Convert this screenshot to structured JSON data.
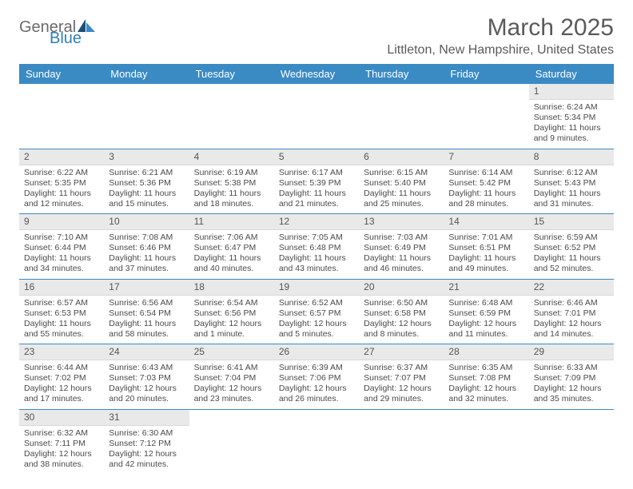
{
  "logo": {
    "general": "General",
    "blue": "Blue"
  },
  "title": "March 2025",
  "location": "Littleton, New Hampshire, United States",
  "colors": {
    "header_bg": "#3a8ac4",
    "header_text": "#ffffff",
    "date_bar_bg": "#e9e9e9",
    "cell_text": "#4a4a4a",
    "title_text": "#5a5a5a",
    "row_border": "#3a8ac4"
  },
  "day_names": [
    "Sunday",
    "Monday",
    "Tuesday",
    "Wednesday",
    "Thursday",
    "Friday",
    "Saturday"
  ],
  "weeks": [
    [
      null,
      null,
      null,
      null,
      null,
      null,
      {
        "d": "1",
        "sr": "6:24 AM",
        "ss": "5:34 PM",
        "dl": "11 hours and 9 minutes."
      }
    ],
    [
      {
        "d": "2",
        "sr": "6:22 AM",
        "ss": "5:35 PM",
        "dl": "11 hours and 12 minutes."
      },
      {
        "d": "3",
        "sr": "6:21 AM",
        "ss": "5:36 PM",
        "dl": "11 hours and 15 minutes."
      },
      {
        "d": "4",
        "sr": "6:19 AM",
        "ss": "5:38 PM",
        "dl": "11 hours and 18 minutes."
      },
      {
        "d": "5",
        "sr": "6:17 AM",
        "ss": "5:39 PM",
        "dl": "11 hours and 21 minutes."
      },
      {
        "d": "6",
        "sr": "6:15 AM",
        "ss": "5:40 PM",
        "dl": "11 hours and 25 minutes."
      },
      {
        "d": "7",
        "sr": "6:14 AM",
        "ss": "5:42 PM",
        "dl": "11 hours and 28 minutes."
      },
      {
        "d": "8",
        "sr": "6:12 AM",
        "ss": "5:43 PM",
        "dl": "11 hours and 31 minutes."
      }
    ],
    [
      {
        "d": "9",
        "sr": "7:10 AM",
        "ss": "6:44 PM",
        "dl": "11 hours and 34 minutes."
      },
      {
        "d": "10",
        "sr": "7:08 AM",
        "ss": "6:46 PM",
        "dl": "11 hours and 37 minutes."
      },
      {
        "d": "11",
        "sr": "7:06 AM",
        "ss": "6:47 PM",
        "dl": "11 hours and 40 minutes."
      },
      {
        "d": "12",
        "sr": "7:05 AM",
        "ss": "6:48 PM",
        "dl": "11 hours and 43 minutes."
      },
      {
        "d": "13",
        "sr": "7:03 AM",
        "ss": "6:49 PM",
        "dl": "11 hours and 46 minutes."
      },
      {
        "d": "14",
        "sr": "7:01 AM",
        "ss": "6:51 PM",
        "dl": "11 hours and 49 minutes."
      },
      {
        "d": "15",
        "sr": "6:59 AM",
        "ss": "6:52 PM",
        "dl": "11 hours and 52 minutes."
      }
    ],
    [
      {
        "d": "16",
        "sr": "6:57 AM",
        "ss": "6:53 PM",
        "dl": "11 hours and 55 minutes."
      },
      {
        "d": "17",
        "sr": "6:56 AM",
        "ss": "6:54 PM",
        "dl": "11 hours and 58 minutes."
      },
      {
        "d": "18",
        "sr": "6:54 AM",
        "ss": "6:56 PM",
        "dl": "12 hours and 1 minute."
      },
      {
        "d": "19",
        "sr": "6:52 AM",
        "ss": "6:57 PM",
        "dl": "12 hours and 5 minutes."
      },
      {
        "d": "20",
        "sr": "6:50 AM",
        "ss": "6:58 PM",
        "dl": "12 hours and 8 minutes."
      },
      {
        "d": "21",
        "sr": "6:48 AM",
        "ss": "6:59 PM",
        "dl": "12 hours and 11 minutes."
      },
      {
        "d": "22",
        "sr": "6:46 AM",
        "ss": "7:01 PM",
        "dl": "12 hours and 14 minutes."
      }
    ],
    [
      {
        "d": "23",
        "sr": "6:44 AM",
        "ss": "7:02 PM",
        "dl": "12 hours and 17 minutes."
      },
      {
        "d": "24",
        "sr": "6:43 AM",
        "ss": "7:03 PM",
        "dl": "12 hours and 20 minutes."
      },
      {
        "d": "25",
        "sr": "6:41 AM",
        "ss": "7:04 PM",
        "dl": "12 hours and 23 minutes."
      },
      {
        "d": "26",
        "sr": "6:39 AM",
        "ss": "7:06 PM",
        "dl": "12 hours and 26 minutes."
      },
      {
        "d": "27",
        "sr": "6:37 AM",
        "ss": "7:07 PM",
        "dl": "12 hours and 29 minutes."
      },
      {
        "d": "28",
        "sr": "6:35 AM",
        "ss": "7:08 PM",
        "dl": "12 hours and 32 minutes."
      },
      {
        "d": "29",
        "sr": "6:33 AM",
        "ss": "7:09 PM",
        "dl": "12 hours and 35 minutes."
      }
    ],
    [
      {
        "d": "30",
        "sr": "6:32 AM",
        "ss": "7:11 PM",
        "dl": "12 hours and 38 minutes."
      },
      {
        "d": "31",
        "sr": "6:30 AM",
        "ss": "7:12 PM",
        "dl": "12 hours and 42 minutes."
      },
      null,
      null,
      null,
      null,
      null
    ]
  ],
  "labels": {
    "sunrise_prefix": "Sunrise: ",
    "sunset_prefix": "Sunset: ",
    "daylight_prefix": "Daylight: "
  }
}
